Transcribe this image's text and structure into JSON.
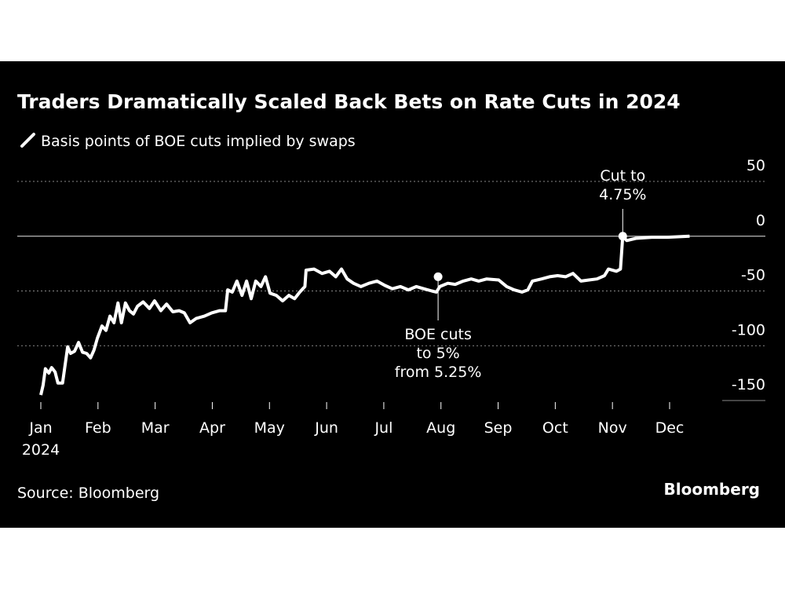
{
  "chart_data": {
    "type": "line",
    "title": "Traders Dramatically Scaled Back Bets on Rate Cuts in 2024",
    "legend": "Basis points of BOE cuts implied by swaps",
    "source": "Source: Bloomberg",
    "brand": "Bloomberg",
    "year_label": "2024",
    "xlim": [
      0,
      11
    ],
    "xticks": [
      {
        "value": 0,
        "label": "Jan"
      },
      {
        "value": 1,
        "label": "Feb"
      },
      {
        "value": 2,
        "label": "Mar"
      },
      {
        "value": 3,
        "label": "Apr"
      },
      {
        "value": 4,
        "label": "May"
      },
      {
        "value": 5,
        "label": "Jun"
      },
      {
        "value": 6,
        "label": "Jul"
      },
      {
        "value": 7,
        "label": "Aug"
      },
      {
        "value": 8,
        "label": "Sep"
      },
      {
        "value": 9,
        "label": "Oct"
      },
      {
        "value": 10,
        "label": "Nov"
      },
      {
        "value": 11,
        "label": "Dec"
      }
    ],
    "ylim": [
      -150,
      50
    ],
    "yticks": [
      50,
      0,
      -50,
      -100,
      -150
    ],
    "grid": true,
    "series": [
      {
        "name": "Basis points of BOE cuts implied by swaps",
        "color": "#ffffff",
        "x": [
          0,
          0.04,
          0.08,
          0.14,
          0.19,
          0.25,
          0.3,
          0.38,
          0.47,
          0.52,
          0.59,
          0.66,
          0.73,
          0.8,
          0.87,
          0.93,
          0.99,
          1.07,
          1.14,
          1.21,
          1.28,
          1.35,
          1.41,
          1.48,
          1.55,
          1.62,
          1.69,
          1.79,
          1.9,
          1.99,
          2.1,
          2.2,
          2.31,
          2.42,
          2.51,
          2.61,
          2.72,
          2.86,
          2.99,
          3.13,
          3.23,
          3.27,
          3.35,
          3.43,
          3.52,
          3.6,
          3.68,
          3.76,
          3.85,
          3.93,
          4.01,
          4.12,
          4.23,
          4.34,
          4.44,
          4.53,
          4.62,
          4.64,
          4.78,
          4.92,
          5.05,
          5.16,
          5.26,
          5.36,
          5.47,
          5.6,
          5.74,
          5.88,
          6.02,
          6.15,
          6.29,
          6.43,
          6.57,
          6.7,
          6.84,
          6.92,
          6.98,
          7.12,
          7.25,
          7.39,
          7.53,
          7.66,
          7.8,
          8.01,
          8.15,
          8.28,
          8.42,
          8.52,
          8.6,
          8.76,
          8.9,
          9.04,
          9.18,
          9.31,
          9.45,
          9.59,
          9.73,
          9.86,
          9.93,
          10.07,
          10.14,
          10.18,
          10.25,
          10.41,
          10.69,
          10.96,
          11.35
        ],
        "values": [
          -145,
          -136,
          -121,
          -125,
          -120,
          -124,
          -134,
          -134,
          -101,
          -107,
          -105,
          -97,
          -106,
          -107,
          -111,
          -104,
          -93,
          -82,
          -86,
          -73,
          -79,
          -61,
          -79,
          -61,
          -68,
          -71,
          -64,
          -60,
          -66,
          -59,
          -68,
          -62,
          -69,
          -68,
          -70,
          -79,
          -75,
          -73,
          -70,
          -68,
          -68,
          -49,
          -51,
          -41,
          -54,
          -41,
          -57,
          -41,
          -46,
          -37,
          -52,
          -54,
          -59,
          -54,
          -57,
          -51,
          -46,
          -31,
          -30,
          -34,
          -32,
          -37,
          -30,
          -39,
          -43,
          -46,
          -43,
          -41,
          -45,
          -48,
          -46,
          -49,
          -46,
          -48,
          -50,
          -51,
          -46,
          -43,
          -44,
          -41,
          -39,
          -41,
          -39,
          -40,
          -46,
          -49,
          -51,
          -49,
          -41,
          -39,
          -37,
          -36,
          -37,
          -34,
          -41,
          -40,
          -39,
          -36,
          -30,
          -32,
          -30,
          0,
          -4,
          -2,
          -1,
          -1,
          0
        ]
      }
    ],
    "annotations": [
      {
        "lines": [
          "BOE cuts",
          "to 5%",
          "from 5.25%"
        ],
        "x": 6.95,
        "y": -37
      },
      {
        "lines": [
          "Cut to",
          "4.75%"
        ],
        "x": 10.18,
        "y": 0
      }
    ]
  }
}
